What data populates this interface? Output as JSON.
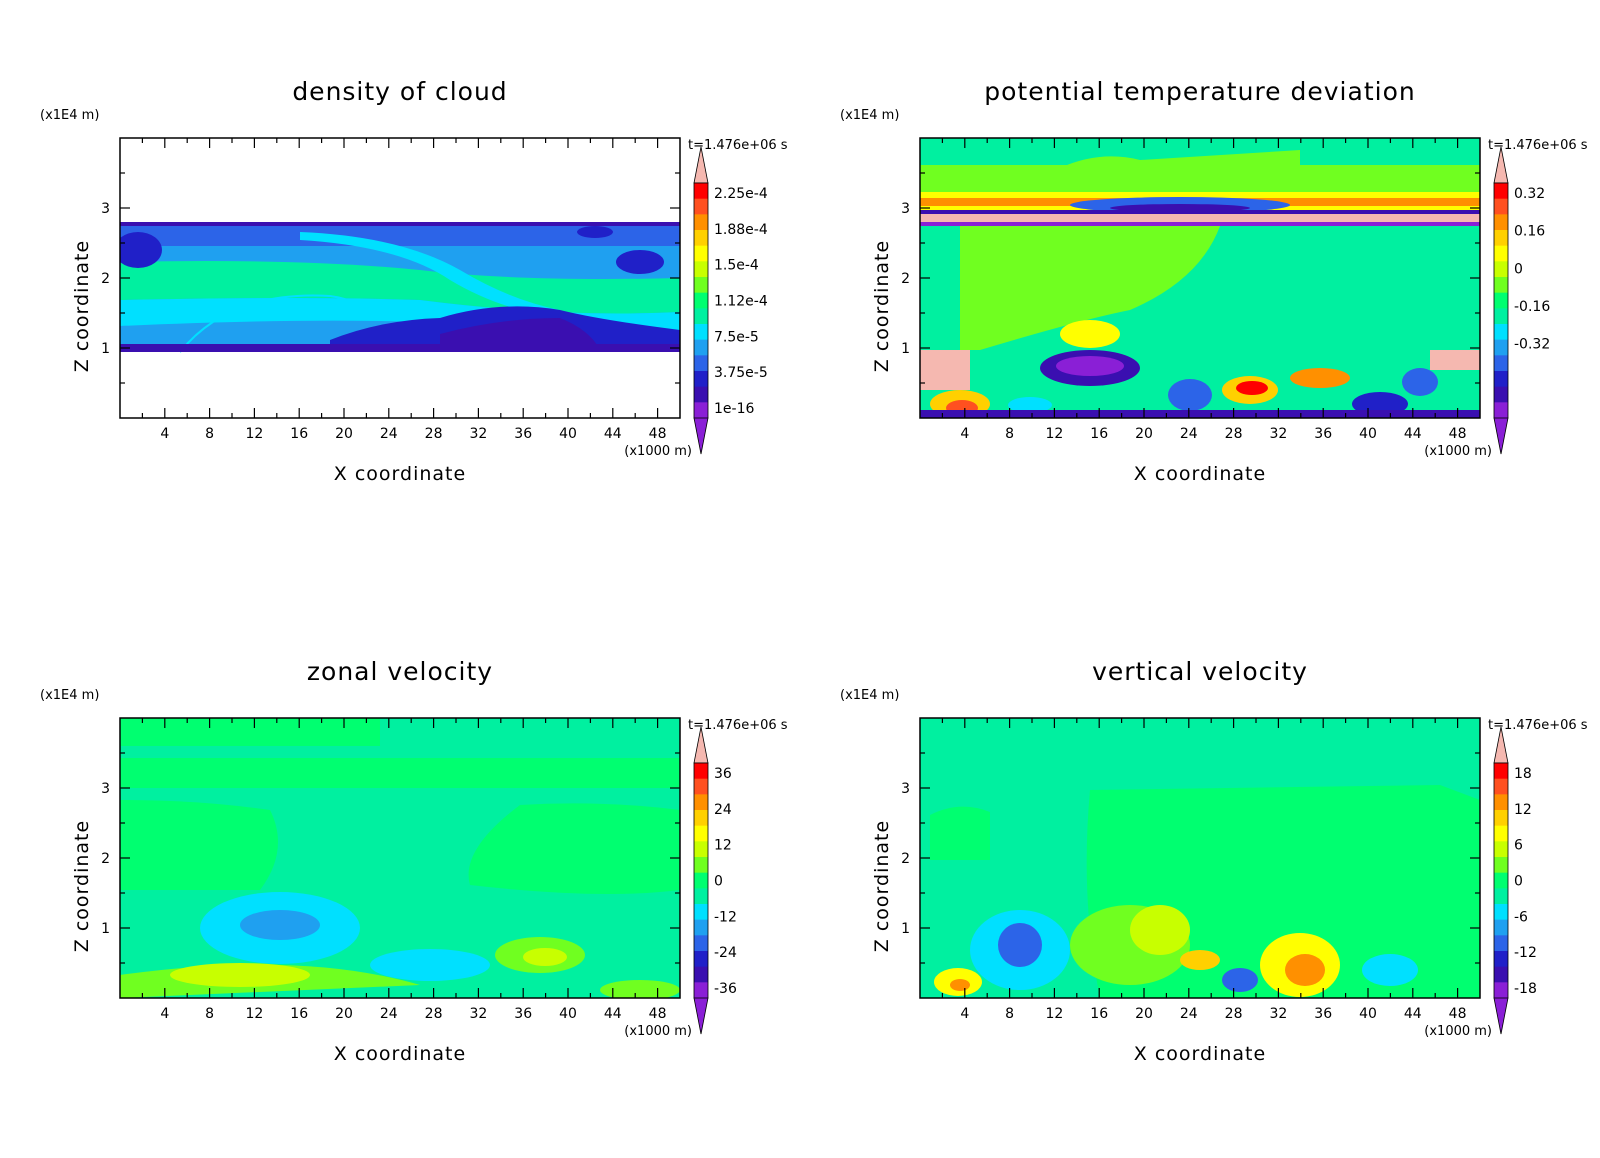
{
  "chart_data": [
    {
      "type": "heatmap",
      "title": "density of cloud",
      "xlabel": "X coordinate",
      "ylabel": "Z coordinate",
      "x_unit": "(x1000 m)",
      "y_unit": "(x1E4 m)",
      "time_label": "t=1.476e+06 s",
      "xlim": [
        0,
        50
      ],
      "ylim": [
        0,
        4
      ],
      "x_ticks": [
        "4",
        "8",
        "12",
        "16",
        "20",
        "24",
        "28",
        "32",
        "36",
        "40",
        "44",
        "48"
      ],
      "y_ticks": [
        "1",
        "2",
        "3"
      ],
      "colorbar_labels": [
        "2.25e-4",
        "1.88e-4",
        "1.5e-4",
        "1.12e-4",
        "7.5e-5",
        "3.75e-5",
        "1e-16"
      ],
      "notes": "cloud layer confined between z≈0.95 and z≈2.75 (x1E4 m); outside blank"
    },
    {
      "type": "heatmap",
      "title": "potential temperature deviation",
      "xlabel": "X coordinate",
      "ylabel": "Z coordinate",
      "x_unit": "(x1000 m)",
      "y_unit": "(x1E4 m)",
      "time_label": "t=1.476e+06 s",
      "xlim": [
        0,
        50
      ],
      "ylim": [
        0,
        4
      ],
      "x_ticks": [
        "4",
        "8",
        "12",
        "16",
        "20",
        "24",
        "28",
        "32",
        "36",
        "40",
        "44",
        "48"
      ],
      "y_ticks": [
        "1",
        "2",
        "3"
      ],
      "colorbar_labels": [
        "0.32",
        "0.16",
        "0",
        "-0.16",
        "-0.32"
      ]
    },
    {
      "type": "heatmap",
      "title": "zonal velocity",
      "xlabel": "X coordinate",
      "ylabel": "Z coordinate",
      "x_unit": "(x1000 m)",
      "y_unit": "(x1E4 m)",
      "time_label": "t=1.476e+06 s",
      "xlim": [
        0,
        50
      ],
      "ylim": [
        0,
        4
      ],
      "x_ticks": [
        "4",
        "8",
        "12",
        "16",
        "20",
        "24",
        "28",
        "32",
        "36",
        "40",
        "44",
        "48"
      ],
      "y_ticks": [
        "1",
        "2",
        "3"
      ],
      "colorbar_labels": [
        "36",
        "24",
        "12",
        "0",
        "-12",
        "-24",
        "-36"
      ]
    },
    {
      "type": "heatmap",
      "title": "vertical velocity",
      "xlabel": "X coordinate",
      "ylabel": "Z coordinate",
      "x_unit": "(x1000 m)",
      "y_unit": "(x1E4 m)",
      "time_label": "t=1.476e+06 s",
      "xlim": [
        0,
        50
      ],
      "ylim": [
        0,
        4
      ],
      "x_ticks": [
        "4",
        "8",
        "12",
        "16",
        "20",
        "24",
        "28",
        "32",
        "36",
        "40",
        "44",
        "48"
      ],
      "y_ticks": [
        "1",
        "2",
        "3"
      ],
      "colorbar_labels": [
        "18",
        "12",
        "6",
        "0",
        "-6",
        "-12",
        "-18"
      ]
    }
  ],
  "colormap": [
    "#8a1fd6",
    "#3a0fb0",
    "#2020c8",
    "#2c64e8",
    "#1fa0f0",
    "#00e0ff",
    "#00f0a0",
    "#00ff70",
    "#70ff20",
    "#c8ff00",
    "#ffff00",
    "#ffd000",
    "#ff9000",
    "#ff5020",
    "#ff0000",
    "#f5b8b0"
  ]
}
